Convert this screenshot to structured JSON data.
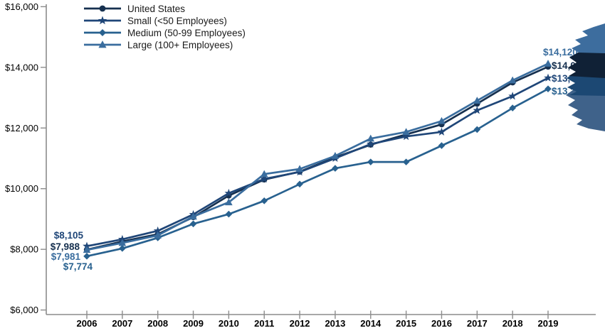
{
  "chart_data": {
    "type": "line",
    "title": "",
    "x": [
      2006,
      2007,
      2008,
      2009,
      2010,
      2011,
      2012,
      2013,
      2014,
      2015,
      2016,
      2017,
      2018,
      2019
    ],
    "x_labels": [
      "2006",
      "2007",
      "2008",
      "2009",
      "2010",
      "2011",
      "2012",
      "2013",
      "2014",
      "2015",
      "2016",
      "2017",
      "2018",
      "2019"
    ],
    "y_tick_values": [
      6000,
      8000,
      10000,
      12000,
      14000,
      16000
    ],
    "y_tick_labels": [
      "$6,000",
      "$8,000",
      "$10,000",
      "$12,000",
      "$14,000",
      "$16,000"
    ],
    "ylim": [
      6000,
      16000
    ],
    "grid": false,
    "legend_position": "top-left-inside",
    "series": [
      {
        "name": "United States",
        "marker": "circle",
        "color": "#16304F",
        "values": [
          7988,
          8260,
          8500,
          9060,
          9770,
          10300,
          10560,
          11030,
          11450,
          11790,
          12120,
          12800,
          13500,
          14020
        ],
        "start_label": "$7,988",
        "end_label": "$14,020"
      },
      {
        "name": "Small (<50 Employees)",
        "marker": "star",
        "color": "#1F4678",
        "values": [
          8105,
          8330,
          8610,
          9150,
          9850,
          10320,
          10550,
          11000,
          11470,
          11720,
          11870,
          12580,
          13050,
          13650
        ],
        "start_label": "$8,105",
        "end_label": "$13,650"
      },
      {
        "name": "Medium (50-99 Employees)",
        "marker": "diamond",
        "color": "#28618F",
        "values": [
          7774,
          8030,
          8380,
          8840,
          9160,
          9600,
          10150,
          10670,
          10880,
          10880,
          11420,
          11950,
          12660,
          13290
        ],
        "start_label": "$7,774",
        "end_label": "$13,290"
      },
      {
        "name": "Large (100+ Employees)",
        "marker": "triangle",
        "color": "#3A6D9E",
        "values": [
          7981,
          8210,
          8460,
          9080,
          9550,
          10480,
          10650,
          11080,
          11650,
          11870,
          12230,
          12900,
          13570,
          14120
        ],
        "start_label": "$7,981",
        "end_label": "$14,120"
      }
    ],
    "axis_color": "#8C8C8C",
    "tick_text_color": "#000000"
  },
  "decoration": {
    "blob_colors": [
      "#3D6D9E",
      "#102136",
      "#1C4873",
      "#3F628A"
    ]
  }
}
